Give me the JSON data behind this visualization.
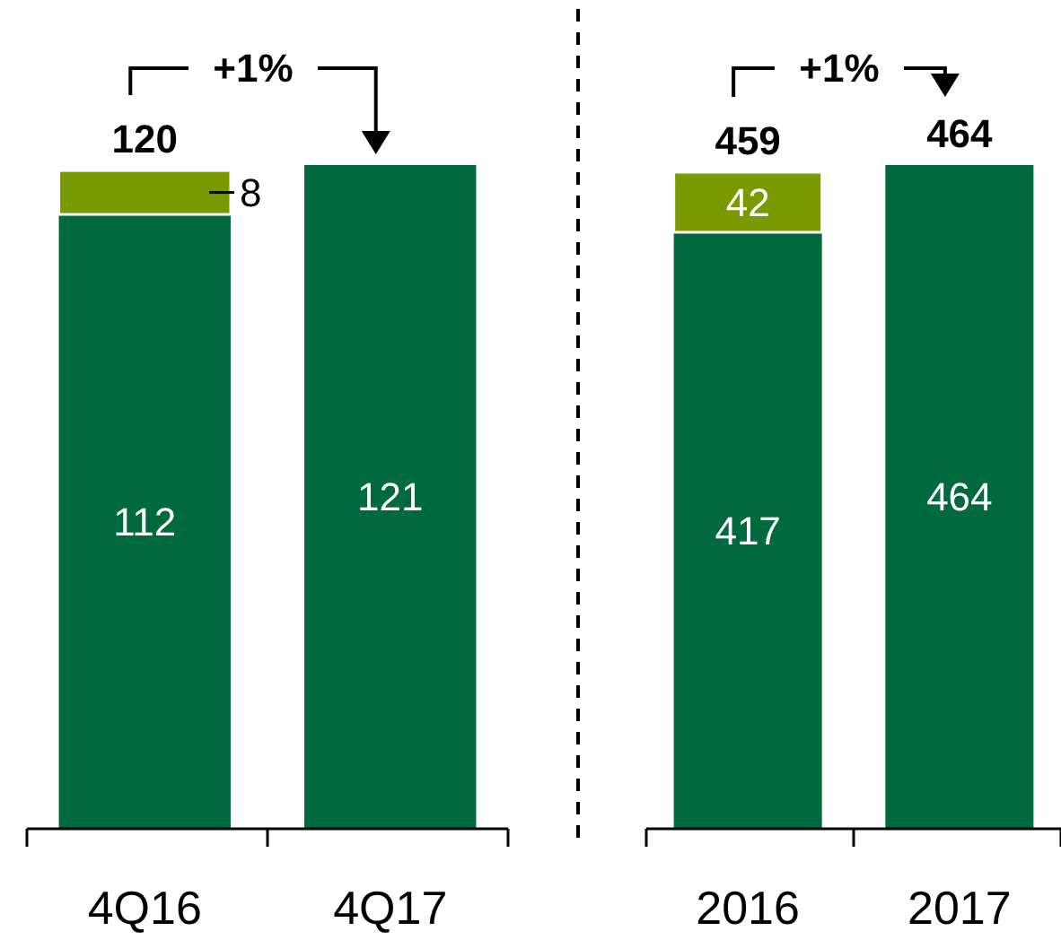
{
  "chart_data": [
    {
      "type": "bar",
      "stacked": true,
      "categories": [
        "4Q16",
        "4Q17"
      ],
      "tick_labels": "x",
      "data_labels": true,
      "totals": [
        "120",
        null
      ],
      "annotations": [
        "+1%"
      ],
      "series": [
        {
          "color": "#006a3e",
          "values": [
            112,
            121
          ]
        },
        {
          "color": "#7a9a01",
          "values": [
            8,
            null
          ]
        }
      ]
    },
    {
      "type": "bar",
      "stacked": true,
      "categories": [
        "2016",
        "2017"
      ],
      "tick_labels": "x",
      "data_labels": true,
      "totals": [
        "459",
        "464"
      ],
      "annotations": [
        "+1%"
      ],
      "series": [
        {
          "color": "#006a3e",
          "values": [
            417,
            464
          ]
        },
        {
          "color": "#7a9a01",
          "values": [
            42,
            null
          ]
        }
      ]
    }
  ]
}
